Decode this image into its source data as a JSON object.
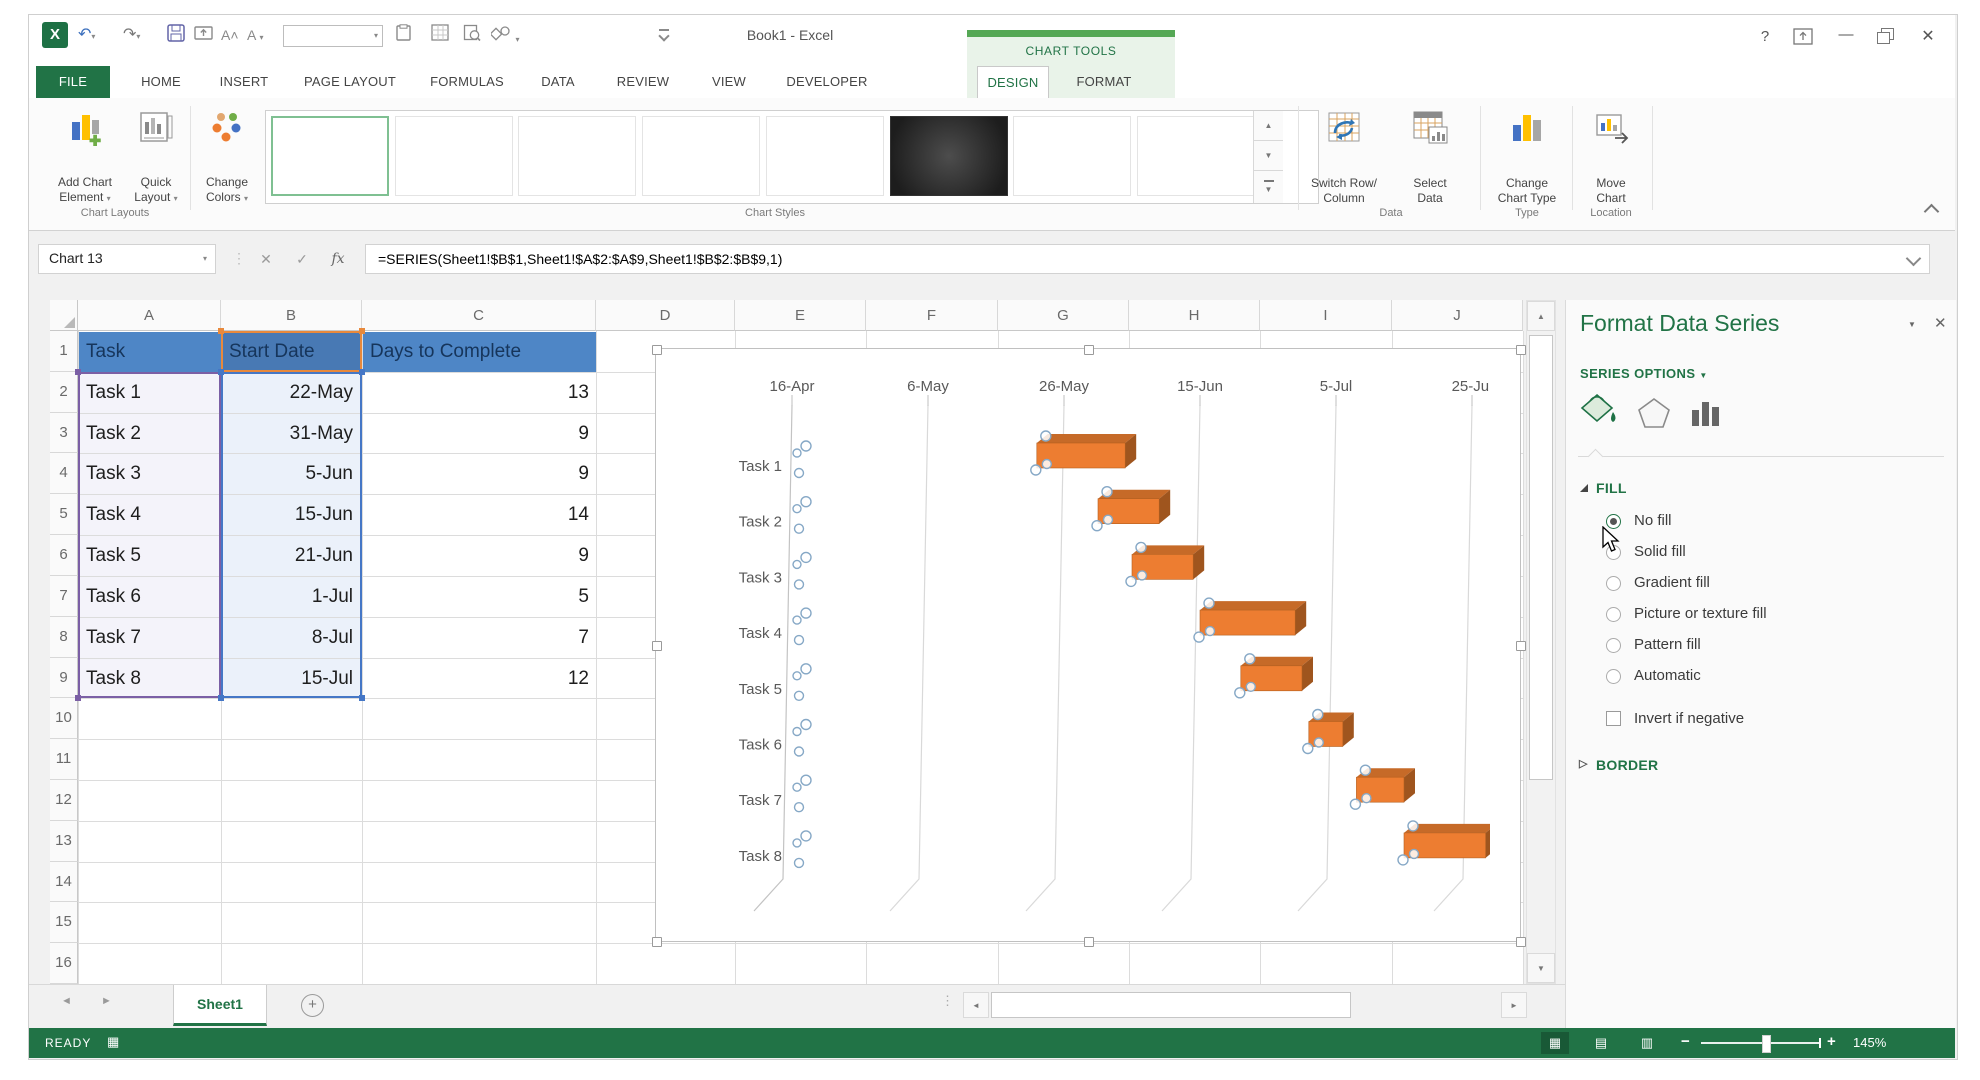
{
  "app": {
    "title": "Book1 - Excel",
    "contextual_tab": "CHART TOOLS"
  },
  "ribbon": {
    "tabs": [
      {
        "label": "FILE",
        "file": true
      },
      {
        "label": "HOME"
      },
      {
        "label": "INSERT"
      },
      {
        "label": "PAGE LAYOUT"
      },
      {
        "label": "FORMULAS"
      },
      {
        "label": "DATA"
      },
      {
        "label": "REVIEW"
      },
      {
        "label": "VIEW"
      },
      {
        "label": "DEVELOPER"
      },
      {
        "label": "DESIGN",
        "active": true
      },
      {
        "label": "FORMAT"
      }
    ],
    "buttons": {
      "add_chart_element": [
        "Add Chart",
        "Element"
      ],
      "quick_layout": [
        "Quick",
        "Layout"
      ],
      "change_colors": [
        "Change",
        "Colors"
      ],
      "switch_row_column": [
        "Switch Row/",
        "Column"
      ],
      "select_data": [
        "Select",
        "Data"
      ],
      "change_chart_type": [
        "Change",
        "Chart Type"
      ],
      "move_chart": [
        "Move",
        "Chart"
      ]
    },
    "group_labels": {
      "chart_layouts": "Chart Layouts",
      "chart_styles": "Chart Styles",
      "data": "Data",
      "type": "Type",
      "location": "Location"
    },
    "chart_styles_gallery": {
      "thumbnails": 8,
      "selected_index": 0,
      "dark_index": 5
    }
  },
  "formula_bar": {
    "name_box": "Chart 13",
    "fx_label": "fx",
    "formula": "=SERIES(Sheet1!$B$1,Sheet1!$A$2:$A$9,Sheet1!$B$2:$B$9,1)"
  },
  "sheet": {
    "columns": [
      "A",
      "B",
      "C",
      "D",
      "E",
      "F",
      "G",
      "H",
      "I",
      "J"
    ],
    "rows_visible": 16,
    "headers": [
      "Task",
      "Start Date",
      "Days to Complete"
    ],
    "rows": [
      [
        "Task 1",
        "22-May",
        "13"
      ],
      [
        "Task 2",
        "31-May",
        "9"
      ],
      [
        "Task 3",
        "5-Jun",
        "9"
      ],
      [
        "Task 4",
        "15-Jun",
        "14"
      ],
      [
        "Task 5",
        "21-Jun",
        "9"
      ],
      [
        "Task 6",
        "1-Jul",
        "5"
      ],
      [
        "Task 7",
        "8-Jul",
        "7"
      ],
      [
        "Task 8",
        "15-Jul",
        "12"
      ]
    ]
  },
  "chart_data": {
    "type": "bar",
    "subtype": "3d-horizontal-gantt",
    "x_ticks": [
      "16-Apr",
      "6-May",
      "26-May",
      "15-Jun",
      "5-Jul",
      "25-Jul"
    ],
    "days_per_tick": 20,
    "axis_start": "16-Apr",
    "categories": [
      "Task 1",
      "Task 2",
      "Task 3",
      "Task 4",
      "Task 5",
      "Task 6",
      "Task 7",
      "Task 8"
    ],
    "series": [
      {
        "name": "Start Date",
        "role": "hidden-offset",
        "values_days_from_axis_start": [
          36,
          45,
          50,
          60,
          66,
          76,
          83,
          90
        ]
      },
      {
        "name": "Days to Complete",
        "values": [
          13,
          9,
          9,
          14,
          9,
          5,
          7,
          12
        ]
      }
    ],
    "bar_color": "#ED7D31",
    "grid": true,
    "legend": "none"
  },
  "pane": {
    "title": "Format Data Series",
    "series_options_label": "SERIES OPTIONS",
    "sections": [
      {
        "label": "FILL",
        "expanded": true,
        "options": [
          "No fill",
          "Solid fill",
          "Gradient fill",
          "Picture or texture fill",
          "Pattern fill",
          "Automatic"
        ],
        "selected_option": "No fill",
        "checkbox": "Invert if negative",
        "checkbox_checked": false
      },
      {
        "label": "BORDER",
        "expanded": false
      }
    ]
  },
  "sheet_tabs": {
    "tabs": [
      "Sheet1"
    ],
    "active": "Sheet1"
  },
  "status_bar": {
    "mode": "READY",
    "zoom_level": "145%"
  },
  "colors": {
    "excel_green": "#217346",
    "contextual_strip": "#55A855",
    "bar_front": "#ED7D31",
    "bar_top": "#C66A28",
    "bar_side": "#9F551E",
    "header_fill": "#4E86C6",
    "range_purple": "#7B5FA5",
    "range_blue": "#4577C6",
    "range_orange": "#E8893C"
  }
}
